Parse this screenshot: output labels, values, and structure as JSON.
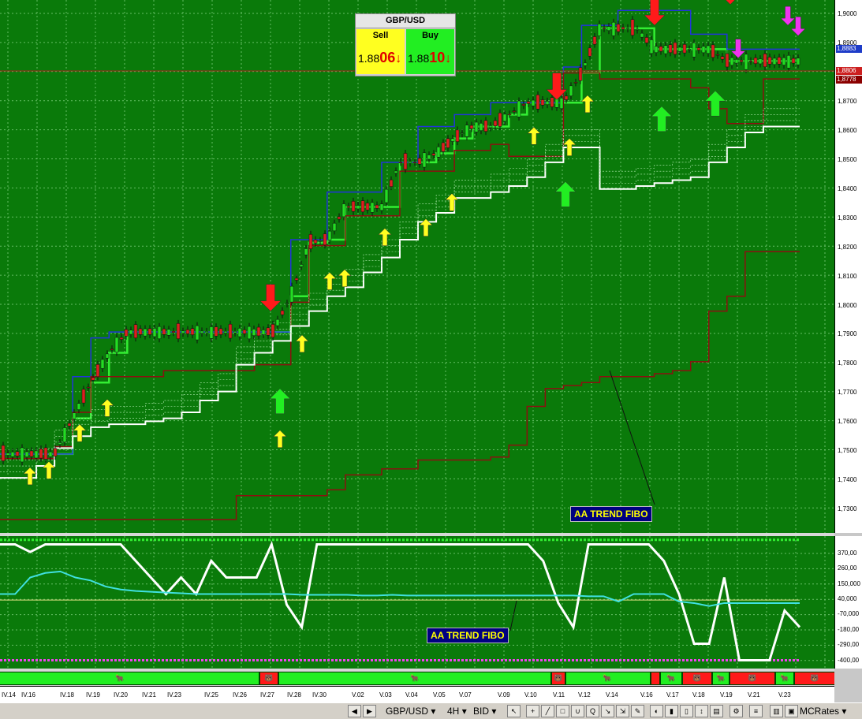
{
  "chart_data": [
    {
      "type": "line",
      "title": "",
      "symbol": "GBP/USD",
      "timeframe": "4H",
      "y_axis_labels": [
        "1,9000",
        "1,8900",
        "1,8700",
        "1,8600",
        "1,8500",
        "1,8400",
        "1,8300",
        "1,8200",
        "1,8100",
        "1,8000",
        "1,7900",
        "1,7800",
        "1,7700",
        "1,7600",
        "1,7500",
        "1,7400",
        "1,7300"
      ],
      "ylim": [
        1.7255,
        1.9045
      ],
      "x_labels": [
        "IV.14",
        "IV.16",
        "IV.18",
        "IV.19",
        "IV.20",
        "IV.21",
        "IV.23",
        "IV.25",
        "IV.26",
        "IV.27",
        "IV.28",
        "IV.30",
        "V.02",
        "V.03",
        "V.04",
        "V.05",
        "V.07",
        "V.09",
        "V.10",
        "V.11",
        "V.12",
        "V.14",
        "V.16",
        "V.17",
        "V.18",
        "V.19",
        "V.21",
        "V.23"
      ],
      "price_tags": [
        {
          "value": "1,8883",
          "color": "#1e3cc8"
        },
        {
          "value": "1,8806",
          "color": "#cc2020"
        },
        {
          "value": "1,8778",
          "color": "#8b0000"
        }
      ],
      "series": [
        {
          "name": "",
          "color": "#33ee33",
          "values": [
            1.752,
            1.752,
            1.752,
            1.752,
            1.764,
            1.776,
            1.786,
            1.793,
            1.793,
            1.793,
            1.793,
            1.793,
            1.793,
            1.793,
            1.793,
            1.793,
            1.805,
            1.823,
            1.824,
            1.835,
            1.835,
            1.835,
            1.85,
            1.85,
            1.853,
            1.858,
            1.862,
            1.862,
            1.866,
            1.87,
            1.87,
            1.87,
            1.88,
            1.895,
            1.895,
            1.895,
            1.888,
            1.888,
            1.888,
            1.888,
            1.884,
            1.884,
            1.884,
            1.884,
            1.884
          ]
        },
        {
          "name": "",
          "color": "#2233dd",
          "values": [
            1.752,
            1.752,
            1.752,
            1.752,
            1.778,
            1.791,
            1.793,
            1.793,
            1.793,
            1.793,
            1.793,
            1.793,
            1.793,
            1.793,
            1.793,
            1.793,
            1.824,
            1.824,
            1.84,
            1.84,
            1.84,
            1.85,
            1.85,
            1.862,
            1.862,
            1.866,
            1.866,
            1.87,
            1.87,
            1.87,
            1.87,
            1.882,
            1.896,
            1.896,
            1.901,
            1.901,
            1.901,
            1.901,
            1.893,
            1.893,
            1.888,
            1.888,
            1.888,
            1.888,
            1.888
          ]
        },
        {
          "name": "",
          "color": "#8b1010",
          "values": [
            1.7505,
            1.7505,
            1.7505,
            1.7545,
            1.766,
            1.778,
            1.778,
            1.778,
            1.778,
            1.78,
            1.78,
            1.78,
            1.78,
            1.78,
            1.782,
            1.782,
            1.803,
            1.822,
            1.822,
            1.832,
            1.832,
            1.832,
            1.847,
            1.847,
            1.847,
            1.854,
            1.854,
            1.856,
            1.852,
            1.852,
            1.852,
            1.88,
            1.88,
            1.878,
            1.878,
            1.878,
            1.878,
            1.878,
            1.875,
            1.868,
            1.863,
            1.863,
            1.878,
            1.878,
            1.878
          ]
        },
        {
          "name": "",
          "color": "#ffffff",
          "values": [
            1.744,
            1.744,
            1.748,
            1.754,
            1.758,
            1.761,
            1.762,
            1.762,
            1.763,
            1.764,
            1.766,
            1.77,
            1.773,
            1.782,
            1.786,
            1.79,
            1.795,
            1.8,
            1.805,
            1.808,
            1.813,
            1.818,
            1.824,
            1.83,
            1.833,
            1.838,
            1.838,
            1.84,
            1.842,
            1.845,
            1.85,
            1.855,
            1.855,
            1.841,
            1.841,
            1.842,
            1.843,
            1.844,
            1.845,
            1.85,
            1.855,
            1.86,
            1.862,
            1.862,
            1.862
          ]
        },
        {
          "name": "",
          "color": "#8b1010",
          "values": [
            1.73,
            1.73,
            1.73,
            1.73,
            1.73,
            1.73,
            1.73,
            1.73,
            1.73,
            1.73,
            1.73,
            1.73,
            1.73,
            1.738,
            1.738,
            1.738,
            1.738,
            1.738,
            1.74,
            1.745,
            1.745,
            1.747,
            1.747,
            1.75,
            1.75,
            1.75,
            1.75,
            1.751,
            1.755,
            1.768,
            1.774,
            1.775,
            1.776,
            1.778,
            1.778,
            1.778,
            1.779,
            1.78,
            1.783,
            1.8,
            1.805,
            1.82,
            1.82,
            1.82,
            1.82
          ]
        }
      ],
      "signals_up_yellow": [
        [
          38,
          1.7475
        ],
        [
          62,
          1.7495
        ],
        [
          101,
          1.762
        ],
        [
          136,
          1.7704
        ],
        [
          355,
          1.76
        ],
        [
          383,
          1.792
        ],
        [
          418,
          1.813
        ],
        [
          437,
          1.814
        ],
        [
          488,
          1.8278
        ],
        [
          540,
          1.831
        ],
        [
          573,
          1.8395
        ],
        [
          677,
          1.8618
        ],
        [
          722,
          1.858
        ],
        [
          745,
          1.8725
        ]
      ],
      "signals_up_green": [
        [
          355,
          1.774
        ],
        [
          717,
          1.8435
        ],
        [
          839,
          1.8688
        ],
        [
          907,
          1.874
        ]
      ],
      "signals_down_red": [
        [
          343,
          1.8
        ],
        [
          706,
          1.871
        ],
        [
          830,
          1.896
        ],
        [
          926,
          1.903
        ]
      ],
      "signals_down_magenta": [
        [
          999,
          1.896
        ],
        [
          1012,
          1.8925
        ],
        [
          936,
          1.885
        ]
      ],
      "annotation": "AA TREND FIBO"
    },
    {
      "type": "line",
      "title": "",
      "y_axis_labels": [
        "370,00",
        "260,00",
        "150,000",
        "40,000",
        "-70,000",
        "-180,00",
        "-290,00",
        "-400,00"
      ],
      "ylim": [
        -455,
        425
      ],
      "series": [
        {
          "name": "",
          "color": "#ffffff",
          "values": [
            370,
            370,
            320,
            370,
            370,
            370,
            370,
            370,
            370,
            260,
            150,
            40,
            150,
            40,
            260,
            150,
            150,
            150,
            370,
            -30,
            -180,
            370,
            370,
            370,
            370,
            370,
            370,
            370,
            370,
            370,
            370,
            370,
            370,
            370,
            370,
            370,
            260,
            -20,
            -180,
            370,
            370,
            370,
            370,
            370,
            260,
            40,
            -290,
            -290,
            150,
            -400,
            -400,
            -400,
            -70,
            -180
          ]
        },
        {
          "name": "",
          "color": "#40e0e0",
          "values": [
            40,
            40,
            150,
            180,
            190,
            150,
            130,
            90,
            70,
            60,
            55,
            50,
            45,
            40,
            40,
            40,
            40,
            40,
            40,
            40,
            35,
            35,
            35,
            35,
            30,
            30,
            35,
            30,
            30,
            30,
            30,
            30,
            30,
            30,
            30,
            30,
            30,
            30,
            30,
            25,
            25,
            -10,
            40,
            40,
            40,
            -10,
            -20,
            -40,
            -20,
            -20,
            -20,
            -20,
            -20,
            -20
          ]
        }
      ],
      "levels": [
        {
          "value": 400,
          "color": "#33ee33"
        },
        {
          "value": 0,
          "color": "#e0e080"
        },
        {
          "value": -400,
          "color": "#ee44ee"
        }
      ],
      "annotation": "AA TREND FIBO"
    }
  ],
  "trade_panel": {
    "title": "GBP/USD",
    "sell_label": "Sell",
    "sell_price_prefix": "1.88",
    "sell_price_big": "06",
    "buy_label": "Buy",
    "buy_price_prefix": "1.88",
    "buy_price_big": "10",
    "arrow_glyph": "↓"
  },
  "trend_strip": [
    {
      "color": "#22ee22",
      "icon": "bull-icon"
    },
    {
      "color": "#ff1a1a",
      "icon": "bear-icon"
    },
    {
      "color": "#22ee22",
      "icon": "bull-icon"
    },
    {
      "color": "#ff1a1a",
      "icon": "bear-icon"
    },
    {
      "color": "#22ee22",
      "icon": "bull-icon"
    },
    {
      "color": "#ff1a1a",
      "icon": "bear-icon"
    },
    {
      "color": "#22ee22",
      "icon": "bull-icon"
    },
    {
      "color": "#ff1a1a",
      "icon": "bear-icon"
    },
    {
      "color": "#22ee22",
      "icon": "bull-icon"
    },
    {
      "color": "#ff1a1a",
      "icon": "bear-icon"
    },
    {
      "color": "#22ee22",
      "icon": "bull-icon"
    },
    {
      "color": "#ff1a1a",
      "icon": "bear-icon"
    }
  ],
  "toolbar": {
    "symbol": "GBP/USD",
    "timeframe": "4H",
    "price_type": "BID",
    "brand": "MCRates",
    "dropdown_glyph": "▾",
    "icons": [
      "cursor-icon",
      "crosshair-icon",
      "line-icon",
      "rectangle-icon",
      "search-icon",
      "magnet-icon",
      "zoom-icon",
      "measure-icon",
      "palette-icon",
      "print-icon",
      "bar-icon",
      "candle-icon",
      "pen-icon",
      "scroll-icon",
      "settings-icon",
      "list-icon",
      "chart-icon",
      "window-icon"
    ]
  }
}
